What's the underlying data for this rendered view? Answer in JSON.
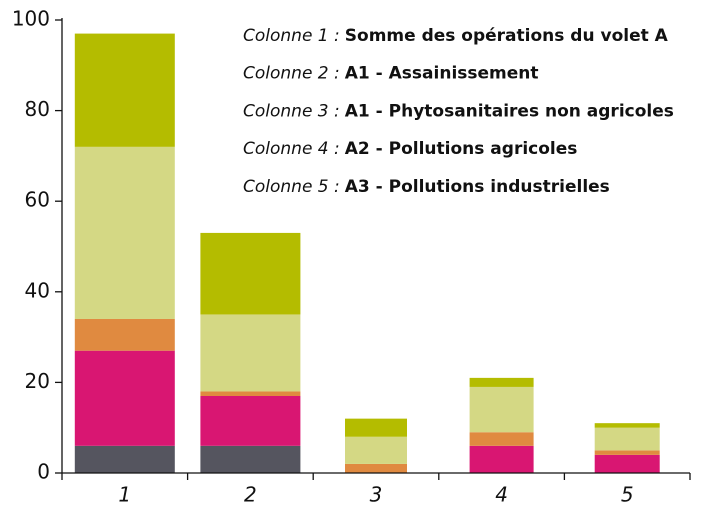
{
  "chart_data": {
    "type": "stacked_bar",
    "categories": [
      "1",
      "2",
      "3",
      "4",
      "5"
    ],
    "series": [
      {
        "color": "#55555f",
        "values": [
          6,
          6,
          0,
          0,
          0
        ]
      },
      {
        "color": "#d91672",
        "values": [
          21,
          11,
          0,
          6,
          4
        ]
      },
      {
        "color": "#e08a40",
        "values": [
          7,
          1,
          2,
          3,
          1
        ]
      },
      {
        "color": "#d4d884",
        "values": [
          38,
          17,
          6,
          10,
          5
        ]
      },
      {
        "color": "#b4bc00",
        "values": [
          25,
          18,
          4,
          2,
          1
        ]
      }
    ],
    "annotations": [
      {
        "prefix": "Colonne 1 :",
        "text": "Somme des opérations du volet A"
      },
      {
        "prefix": "Colonne 2 :",
        "text": "A1 - Assainissement"
      },
      {
        "prefix": "Colonne 3 :",
        "text": "A1 - Phytosanitaires non agricoles"
      },
      {
        "prefix": "Colonne 4 :",
        "text": "A2 - Pollutions agricoles"
      },
      {
        "prefix": "Colonne 5 :",
        "text": "A3 - Pollutions industrielles"
      }
    ],
    "ylim": [
      0,
      100
    ],
    "yticks": [
      0,
      20,
      40,
      60,
      80,
      100
    ],
    "grid": false
  }
}
